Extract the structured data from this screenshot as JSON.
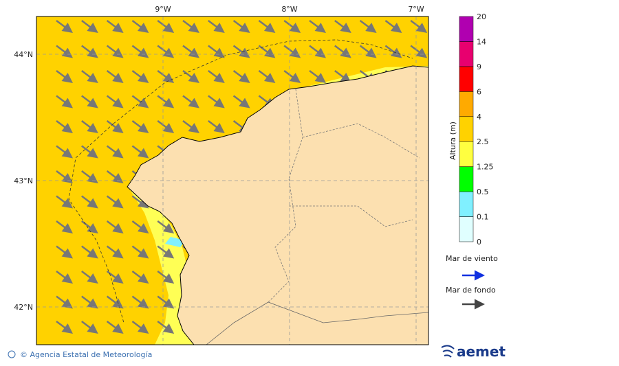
{
  "map": {
    "lon_labels": [
      "9°W",
      "8°W",
      "7°W"
    ],
    "lat_labels": [
      "44°N",
      "43°N",
      "42°N"
    ],
    "colorbar": {
      "title": "Altura (m)",
      "levels": [
        0,
        0.1,
        0.5,
        1.25,
        2.5,
        4,
        6,
        9,
        14,
        20
      ],
      "colors": [
        "#e0ffff",
        "#80f0ff",
        "#00ff00",
        "#ffff40",
        "#ffd200",
        "#ffaa00",
        "#ff0000",
        "#e8006f",
        "#b000b0"
      ]
    },
    "legend": {
      "wind_sea": "Mar de viento",
      "swell": "Mar de fondo"
    },
    "footer": "© Agencia Estatal de Meteorología",
    "logo": "aemet"
  }
}
